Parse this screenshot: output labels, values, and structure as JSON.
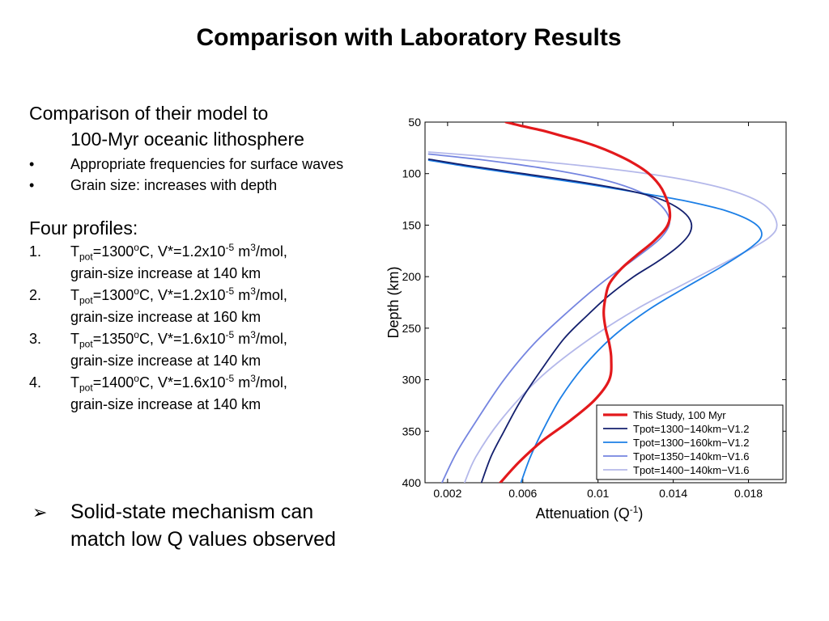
{
  "slide": {
    "title": "Comparison with Laboratory Results",
    "intro_line1": "Comparison of their model to",
    "intro_line2": "100-Myr oceanic lithosphere",
    "bullets": [
      "Appropriate frequencies for surface waves",
      "Grain size: increases with depth"
    ],
    "bullet_mark": "•",
    "profiles_heading": "Four profiles:",
    "profiles": [
      {
        "num": "1.",
        "t_label": "T",
        "t_sub": "pot",
        "t_value": "=1300",
        "deg": "o",
        "mid": "C, V*=1.2x10",
        "exp": "-5",
        "unit": " m",
        "unit_exp": "3",
        "tail": "/mol,",
        "line2": "grain-size increase at 140  km"
      },
      {
        "num": "2.",
        "t_label": "T",
        "t_sub": "pot",
        "t_value": "=1300",
        "deg": "o",
        "mid": "C, V*=1.2x10",
        "exp": "-5",
        "unit": " m",
        "unit_exp": "3",
        "tail": "/mol,",
        "line2": "grain-size increase at 160  km"
      },
      {
        "num": "3.",
        "t_label": "T",
        "t_sub": "pot",
        "t_value": "=1350",
        "deg": "o",
        "mid": "C, V*=1.6x10",
        "exp": "-5",
        "unit": " m",
        "unit_exp": "3",
        "tail": "/mol,",
        "line2": "grain-size increase at 140  km"
      },
      {
        "num": "4.",
        "t_label": "T",
        "t_sub": "pot",
        "t_value": "=1400",
        "deg": "o",
        "mid": "C, V*=1.6x10",
        "exp": "-5",
        "unit": " m",
        "unit_exp": "3",
        "tail": "/mol,",
        "line2": "grain-size increase at 140  km"
      }
    ],
    "arrow_mark": "➢",
    "conclusion": "Solid-state mechanism can match low Q values observed"
  },
  "chart_data": {
    "type": "line",
    "xlabel": "Attenuation (Q",
    "xlabel_sup": "-1",
    "xlabel_end": ")",
    "ylabel": "Depth (km)",
    "xlim": [
      0.0008,
      0.02
    ],
    "ylim": [
      400,
      50
    ],
    "y_inverted": true,
    "x_ticks": [
      0.002,
      0.006,
      0.01,
      0.014,
      0.018
    ],
    "x_tick_labels": [
      "0.002",
      "0.006",
      "0.01",
      "0.014",
      "0.018"
    ],
    "y_ticks": [
      50,
      100,
      150,
      200,
      250,
      300,
      350,
      400
    ],
    "y_tick_labels": [
      "50",
      "100",
      "150",
      "200",
      "250",
      "300",
      "350",
      "400"
    ],
    "grid": false,
    "legend_position": "bottom-right",
    "series": [
      {
        "name": "This Study, 100 Myr",
        "color": "#e3191c",
        "width": 3.2,
        "x": [
          0.0051,
          0.006,
          0.007,
          0.008,
          0.009,
          0.01,
          0.0108,
          0.0118,
          0.0127,
          0.0134,
          0.0138,
          0.0137,
          0.013,
          0.012,
          0.0112,
          0.0106,
          0.0104,
          0.0103,
          0.0104,
          0.0106,
          0.0107,
          0.0106,
          0.0098,
          0.0085,
          0.007,
          0.0058,
          0.0048
        ],
        "y": [
          50,
          54,
          58,
          63,
          68,
          74,
          80,
          89,
          100,
          115,
          135,
          150,
          165,
          180,
          193,
          207,
          220,
          235,
          250,
          265,
          280,
          300,
          320,
          340,
          360,
          380,
          400
        ]
      },
      {
        "name": "Tpot=1300−140km−V1.2",
        "color": "#14206e",
        "width": 1.8,
        "x": [
          0.001,
          0.003,
          0.006,
          0.009,
          0.0115,
          0.0132,
          0.0143,
          0.0149,
          0.0149,
          0.0143,
          0.0132,
          0.0119,
          0.0106,
          0.0094,
          0.0082,
          0.007,
          0.0059,
          0.005,
          0.0043,
          0.0038
        ],
        "y": [
          86,
          92,
          100,
          108,
          116,
          124,
          134,
          145,
          157,
          170,
          185,
          200,
          218,
          238,
          260,
          290,
          320,
          350,
          375,
          400
        ]
      },
      {
        "name": "Tpot=1300−160km−V1.2",
        "color": "#1c7fe6",
        "width": 1.8,
        "x": [
          0.001,
          0.003,
          0.006,
          0.009,
          0.012,
          0.0145,
          0.0168,
          0.0183,
          0.0187,
          0.0181,
          0.0166,
          0.0147,
          0.0127,
          0.0108,
          0.0092,
          0.008,
          0.0071,
          0.0064,
          0.0059
        ],
        "y": [
          87,
          93,
          101,
          109,
          118,
          126,
          136,
          148,
          160,
          172,
          190,
          210,
          232,
          258,
          288,
          318,
          348,
          375,
          400
        ]
      },
      {
        "name": "Tpot=1350−140km−V1.6",
        "color": "#7585e0",
        "width": 1.8,
        "x": [
          0.001,
          0.004,
          0.0075,
          0.0105,
          0.0125,
          0.0135,
          0.0138,
          0.0133,
          0.012,
          0.0102,
          0.0084,
          0.0066,
          0.005,
          0.0036,
          0.0025,
          0.0017
        ],
        "y": [
          81,
          87,
          96,
          107,
          120,
          134,
          148,
          163,
          182,
          206,
          234,
          265,
          300,
          338,
          370,
          400
        ]
      },
      {
        "name": "Tpot=1400−140km−V1.6",
        "color": "#b4b8ea",
        "width": 1.8,
        "x": [
          0.001,
          0.005,
          0.01,
          0.014,
          0.017,
          0.0188,
          0.0195,
          0.0191,
          0.0174,
          0.0148,
          0.012,
          0.0092,
          0.0068,
          0.0048,
          0.0035,
          0.0029
        ],
        "y": [
          79,
          85,
          94,
          104,
          116,
          130,
          148,
          162,
          180,
          205,
          232,
          265,
          300,
          340,
          375,
          400
        ]
      }
    ]
  }
}
